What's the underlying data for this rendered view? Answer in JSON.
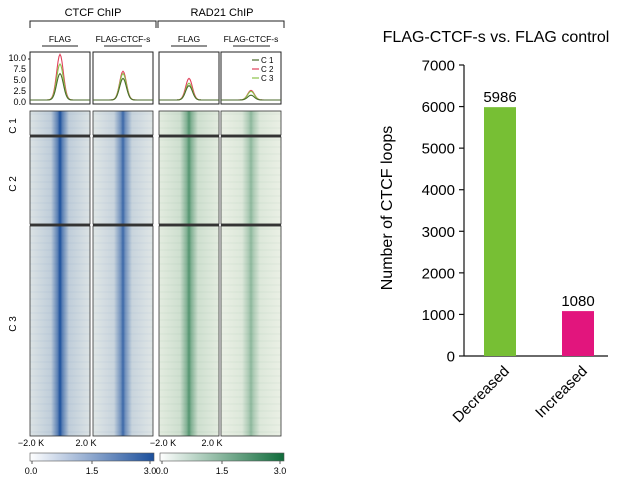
{
  "left_panel": {
    "group_headers": [
      "CTCF ChIP",
      "RAD21 ChIP"
    ],
    "column_labels": [
      "FLAG",
      "FLAG-CTCF-s",
      "FLAG",
      "FLAG-CTCF-s"
    ],
    "profile_yticks": [
      "10.0",
      "7.5",
      "5.0",
      "2.5",
      "0.0"
    ],
    "legend": [
      {
        "label": "C 1",
        "color": "#4a6a2a"
      },
      {
        "label": "C 2",
        "color": "#e0405a"
      },
      {
        "label": "C 3",
        "color": "#8cc34a"
      }
    ],
    "cluster_labels": [
      "C 1",
      "C 2",
      "C 3"
    ],
    "x_tick_left": "−2.0 K",
    "x_tick_right": "2.0 K",
    "colorbars": [
      {
        "ticks": [
          "0.0",
          "1.5",
          "3.0"
        ],
        "color_low": "#ffffff",
        "color_high": "#1b4f9c"
      },
      {
        "ticks": [
          "0.0",
          "1.5",
          "3.0"
        ],
        "color_low": "#ffffff",
        "color_high": "#0f6b3a"
      }
    ],
    "heat_colors": [
      "#1b4f9c",
      "#1b4f9c",
      "#0f6b3a",
      "#0f6b3a"
    ]
  },
  "chart_data": {
    "type": "bar",
    "title": "FLAG-CTCF-s vs. FLAG control",
    "ylabel": "Number of CTCF loops",
    "xlabel": "",
    "categories": [
      "Decreased",
      "Increased"
    ],
    "values": [
      5986,
      1080
    ],
    "value_labels": [
      "5986",
      "1080"
    ],
    "colors": [
      "#77bf34",
      "#e2157d"
    ],
    "yticks": [
      "0",
      "1000",
      "2000",
      "3000",
      "4000",
      "5000",
      "6000",
      "7000"
    ],
    "ylim": [
      0,
      7000
    ],
    "grid": false
  }
}
